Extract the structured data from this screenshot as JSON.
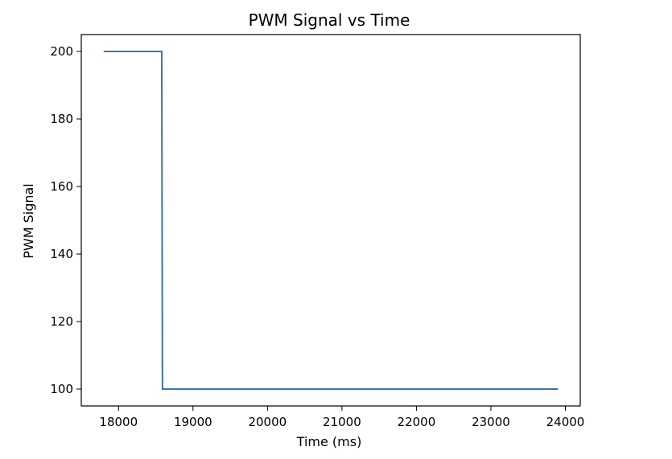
{
  "colors": {
    "series": "#3b75af",
    "axis": "#000000",
    "background": "#ffffff"
  },
  "chart_data": {
    "type": "line",
    "title": "PWM Signal vs Time",
    "xlabel": "Time (ms)",
    "ylabel": "PWM Signal",
    "xlim": [
      17500,
      24200
    ],
    "ylim": [
      95,
      205
    ],
    "grid": false,
    "legend": "none",
    "xticks": [
      18000,
      19000,
      20000,
      21000,
      22000,
      23000,
      24000
    ],
    "xtick_labels": [
      "18000",
      "19000",
      "20000",
      "21000",
      "22000",
      "23000",
      "24000"
    ],
    "yticks": [
      100,
      120,
      140,
      160,
      180,
      200
    ],
    "ytick_labels": [
      "100",
      "120",
      "140",
      "160",
      "180",
      "200"
    ],
    "series": [
      {
        "step": "pre",
        "x": [
          17800,
          18580,
          18590,
          23900
        ],
        "y": [
          200,
          200,
          100,
          100
        ]
      }
    ]
  }
}
